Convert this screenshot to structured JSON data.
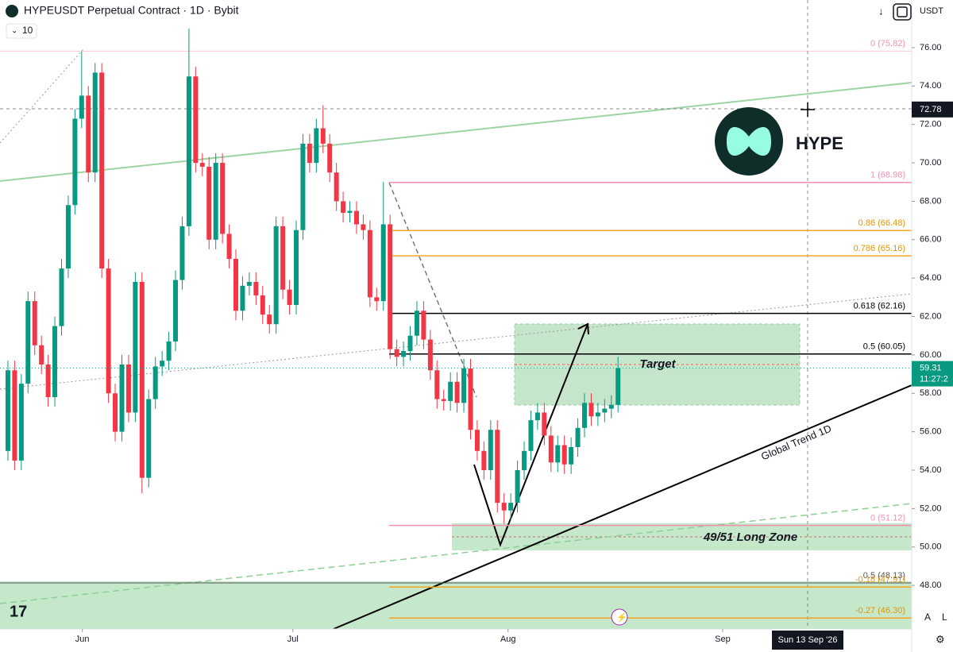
{
  "chart_data": {
    "type": "candlestick",
    "title": "HYPEUSDT Perpetual Contract · 1D · Bybit",
    "indicator": "10",
    "currency": "USDT",
    "up_color": "#089981",
    "down_color": "#f23645",
    "open": [
      55,
      59.2,
      54.5,
      58.5,
      62.8,
      60.5,
      59.5,
      57.8,
      61.5,
      64.5,
      67.8,
      72.3,
      73.5,
      69.5,
      74.7,
      64.5,
      58,
      56,
      59.5,
      57,
      63.8,
      53.6,
      57.7,
      59.4,
      59.7,
      60.7,
      63.9,
      66.7,
      74.5,
      70,
      69.8,
      66,
      70,
      66.3,
      65,
      62.3,
      63.6,
      63.8,
      63.1,
      62.1,
      61.6,
      66.7,
      63.4,
      62.6,
      66.5,
      71,
      70,
      71.8,
      71,
      69.5,
      68,
      67.4,
      67.5,
      66.8,
      66.5,
      63,
      62.8,
      66.8,
      60.3,
      59.9,
      60.2,
      61,
      62.3,
      60.8,
      59.2,
      57.7,
      57.6,
      58.6,
      57.5,
      59.3,
      56.1,
      55,
      54,
      56.1,
      52.3,
      51.9,
      52.3,
      54,
      55,
      56.6,
      57,
      55.8,
      54.4,
      55.3,
      54.3,
      55.2,
      56.2,
      57.5,
      56.8,
      57,
      57.2,
      57.4
    ],
    "high": [
      59.7,
      59.7,
      59.0,
      63.3,
      63.3,
      61.0,
      60.0,
      62.0,
      65.0,
      68.3,
      72.8,
      75.8,
      74.0,
      75.2,
      75.2,
      65.0,
      58.5,
      60.0,
      60.0,
      64.3,
      64.3,
      58.2,
      59.9,
      60.2,
      61.2,
      64.4,
      67.2,
      77.0,
      75.0,
      70.5,
      70.3,
      70.5,
      70.5,
      66.8,
      65.5,
      64.1,
      64.3,
      64.3,
      63.6,
      62.6,
      67.2,
      67.2,
      63.9,
      67.0,
      71.5,
      71.5,
      72.3,
      73.0,
      71.5,
      70.0,
      68.5,
      68.0,
      68.0,
      67.3,
      67.0,
      63.5,
      69.0,
      67.3,
      60.8,
      60.7,
      61.5,
      62.8,
      62.8,
      61.3,
      59.7,
      58.2,
      59.1,
      59.1,
      59.8,
      59.8,
      56.6,
      55.5,
      56.6,
      56.6,
      52.8,
      52.8,
      54.5,
      55.5,
      57.1,
      57.5,
      57.5,
      56.3,
      55.8,
      55.8,
      55.7,
      56.7,
      58.0,
      58.0,
      57.5,
      57.7,
      57.9,
      59.9
    ],
    "low": [
      54.5,
      54.0,
      54.0,
      58.0,
      60.0,
      59.0,
      57.3,
      57.3,
      61.0,
      64.0,
      67.3,
      71.8,
      69.0,
      69.0,
      64.0,
      57.5,
      55.5,
      55.5,
      56.5,
      56.5,
      52.8,
      53.1,
      57.2,
      58.9,
      59.2,
      60.2,
      63.4,
      66.2,
      69.5,
      69.3,
      65.5,
      65.5,
      65.8,
      64.5,
      61.8,
      61.8,
      63.1,
      62.6,
      61.6,
      61.1,
      61.1,
      62.9,
      62.1,
      62.1,
      66.0,
      69.5,
      69.5,
      70.5,
      69.0,
      67.5,
      66.9,
      66.9,
      66.3,
      66.0,
      62.5,
      62.3,
      62.3,
      59.8,
      59.4,
      59.4,
      59.7,
      60.5,
      60.3,
      58.7,
      57.2,
      57.1,
      57.1,
      57.0,
      57.0,
      55.6,
      54.5,
      53.5,
      53.5,
      51.8,
      51.2,
      51.4,
      51.8,
      53.5,
      54.5,
      56.1,
      55.3,
      53.9,
      53.9,
      53.8,
      53.8,
      54.7,
      55.7,
      56.3,
      56.3,
      56.5,
      56.7,
      57.0
    ],
    "close": [
      59.2,
      54.5,
      58.5,
      62.8,
      60.5,
      59.5,
      57.8,
      61.5,
      64.5,
      67.8,
      72.3,
      73.5,
      69.5,
      74.7,
      64.5,
      58,
      56,
      59.5,
      57,
      63.8,
      53.6,
      57.7,
      59.4,
      59.7,
      60.7,
      63.9,
      66.7,
      74.5,
      70,
      69.8,
      66,
      70,
      66.3,
      65,
      62.3,
      63.6,
      63.8,
      63.1,
      62.1,
      61.6,
      66.7,
      63.4,
      62.6,
      66.5,
      71,
      70,
      71.8,
      71,
      69.5,
      68,
      67.4,
      67.5,
      66.8,
      66.5,
      63,
      62.8,
      66.8,
      60.3,
      59.9,
      60.2,
      61,
      62.3,
      60.8,
      59.2,
      57.7,
      57.6,
      58.6,
      57.5,
      59.3,
      56.1,
      55,
      54,
      56.1,
      52.3,
      51.9,
      52.3,
      54,
      55,
      56.6,
      57,
      55.8,
      54.4,
      55.3,
      54.3,
      55.2,
      56.2,
      57.5,
      56.8,
      57,
      57.2,
      57.4,
      59.31
    ],
    "xlim": [
      -1.18,
      134.8
    ],
    "xticks": [
      {
        "value": 11.1,
        "label": "Jun"
      },
      {
        "value": 42.5,
        "label": "Jul"
      },
      {
        "value": 74.6,
        "label": "Aug"
      },
      {
        "value": 106.6,
        "label": "Sep"
      }
    ],
    "ylim": [
      45.73,
      78.48
    ],
    "yticks": [
      {
        "value": 48,
        "label": "48.00"
      },
      {
        "value": 50,
        "label": "50.00"
      },
      {
        "value": 52,
        "label": "52.00"
      },
      {
        "value": 54,
        "label": "54.00"
      },
      {
        "value": 56,
        "label": "56.00"
      },
      {
        "value": 58,
        "label": "58.00"
      },
      {
        "value": 60,
        "label": "60.00"
      },
      {
        "value": 62,
        "label": "62.00"
      },
      {
        "value": 64,
        "label": "64.00"
      },
      {
        "value": 66,
        "label": "66.00"
      },
      {
        "value": 68,
        "label": "68.00"
      },
      {
        "value": 70,
        "label": "70.00"
      },
      {
        "value": 72,
        "label": "72.00"
      },
      {
        "value": 74,
        "label": "74.00"
      },
      {
        "value": 76,
        "label": "76.00"
      }
    ],
    "levels": [
      {
        "value": 75.82,
        "label": "0 (75.82)",
        "color": "#f48fb1"
      },
      {
        "value": 68.98,
        "label": "1 (68.98)",
        "color": "#f48fb1"
      },
      {
        "value": 66.48,
        "label": "0.86 (66.48)",
        "color": "#f5a623"
      },
      {
        "value": 65.16,
        "label": "0.786 (65.16)",
        "color": "#f5a623"
      },
      {
        "value": 62.16,
        "label": "0.618 (62.16)",
        "color": "#000000"
      },
      {
        "value": 60.05,
        "label": "0.5 (60.05)",
        "color": "#000000"
      },
      {
        "value": 51.12,
        "label": "0 (51.12)",
        "color": "#f48fb1"
      },
      {
        "value": 48.13,
        "label": "0.5 (48.13)",
        "color": "#555555"
      },
      {
        "value": 47.91,
        "label": "-0.18 (47.91)",
        "color": "#f5a623"
      },
      {
        "value": 46.3,
        "label": "-0.27 (46.30)",
        "color": "#f5a623"
      }
    ],
    "last_price": {
      "value": 59.31,
      "label": "59.31",
      "countdown": "11:27:2"
    },
    "crosshair": {
      "value": 72.78,
      "label": "72.78",
      "date": "Sun 13 Sep '26"
    },
    "annotations": [
      "Target",
      "49/51 Long Zone",
      "Global Trend 1D",
      "HYPE"
    ]
  }
}
